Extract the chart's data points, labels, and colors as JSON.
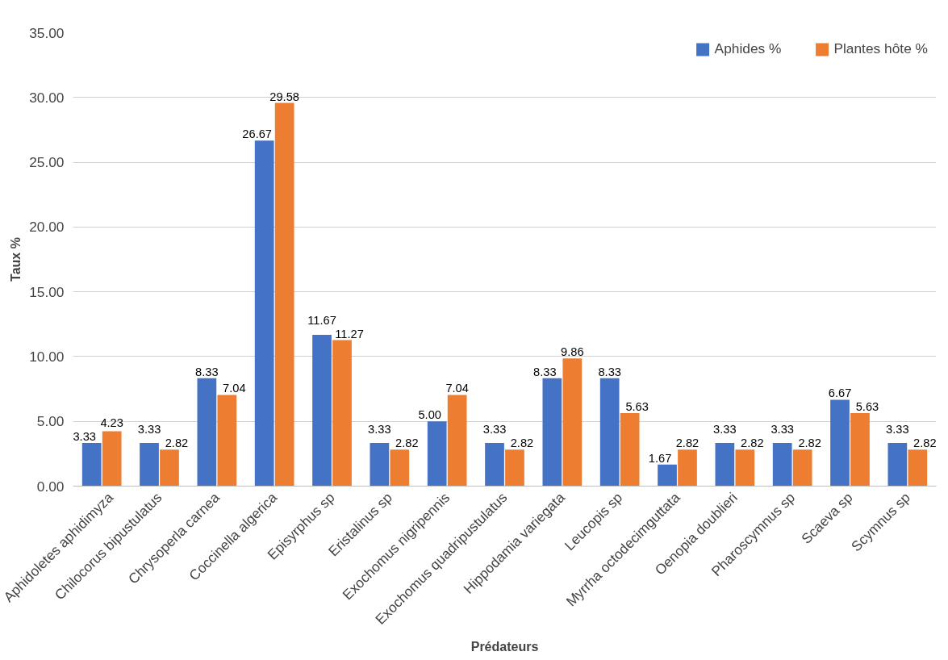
{
  "chart_data": {
    "type": "bar",
    "xlabel": "Prédateurs",
    "ylabel": "Taux %",
    "categories": [
      "Aphidoletes aphidimyza",
      "Chilocorus bipustulatus",
      "Chrysoperla carnea",
      "Coccinella algerica",
      "Episyrphus sp",
      "Eristalinus sp",
      "Exochomus nigripennis",
      "Exochomus quadripustulatus",
      "Hippodamia variegata",
      "Leucopis sp",
      "Myrrha octodecimguttata",
      "Oenopia doublieri",
      "Pharoscymnus sp",
      "Scaeva sp",
      "Scymnus sp"
    ],
    "series": [
      {
        "name": "Aphides %",
        "color": "#4472c4",
        "values": [
          3.33,
          3.33,
          8.33,
          26.67,
          11.67,
          3.33,
          5.0,
          3.33,
          8.33,
          8.33,
          1.67,
          3.33,
          3.33,
          6.67,
          3.33
        ],
        "value_labels": [
          "3.33",
          "3.33",
          "8.33",
          "26.67",
          "11.67",
          "3.33",
          "5.00",
          "3.33",
          "8.33",
          "8.33",
          "1.67",
          "3.33",
          "3.33",
          "6.67",
          "3.33"
        ]
      },
      {
        "name": "Plantes hôte %",
        "color": "#ed7d31",
        "values": [
          4.23,
          2.82,
          7.04,
          29.58,
          11.27,
          2.82,
          7.04,
          2.82,
          9.86,
          5.63,
          2.82,
          2.82,
          2.82,
          5.63,
          2.82
        ],
        "value_labels": [
          "4.23",
          "2.82",
          "7.04",
          "29.58",
          "11.27",
          "2.82",
          "7.04",
          "2.82",
          "9.86",
          "5.63",
          "2.82",
          "2.82",
          "2.82",
          "5.63",
          "2.82"
        ]
      }
    ],
    "ylim": [
      0,
      35
    ],
    "yticks": [
      {
        "value": 0,
        "label": "0.00"
      },
      {
        "value": 5,
        "label": "5.00"
      },
      {
        "value": 10,
        "label": "10.00"
      },
      {
        "value": 15,
        "label": "15.00"
      },
      {
        "value": 20,
        "label": "20.00"
      },
      {
        "value": 25,
        "label": "25.00"
      },
      {
        "value": 30,
        "label": "30.00"
      },
      {
        "value": 35,
        "label": "35.00"
      }
    ],
    "grid": "y",
    "legend": "top right"
  }
}
